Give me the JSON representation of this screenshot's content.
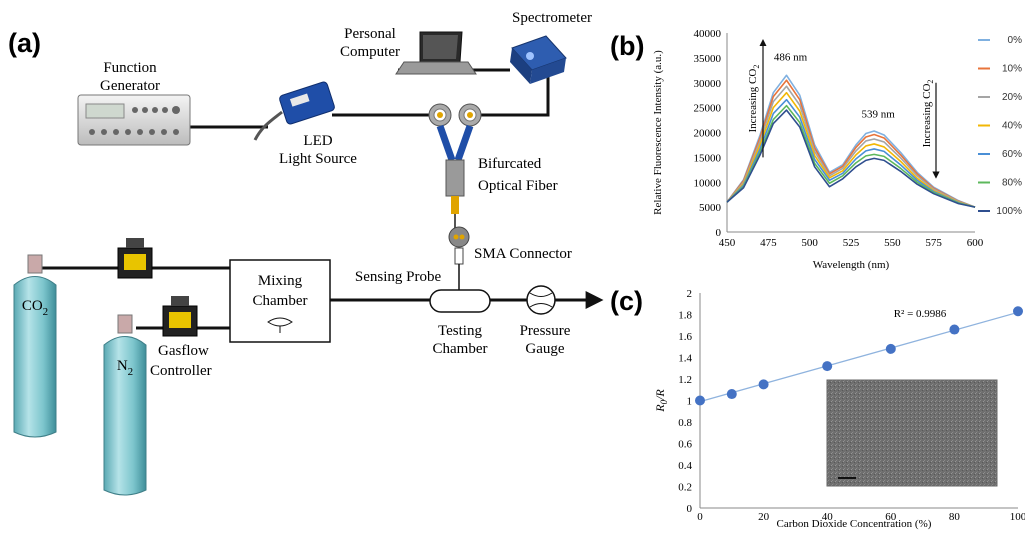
{
  "panels": {
    "a": "(a)",
    "b": "(b)",
    "c": "(c)"
  },
  "setup": {
    "function_generator": [
      "Function",
      "Generator"
    ],
    "personal_computer": [
      "Personal",
      "Computer"
    ],
    "spectrometer": "Spectrometer",
    "led": [
      "LED",
      "Light Source"
    ],
    "bifurcated_fiber": [
      "Bifurcated",
      "Optical Fiber"
    ],
    "sma_connector": "SMA Connector",
    "sensing_probe": "Sensing Probe",
    "mixing_chamber": [
      "Mixing",
      "Chamber"
    ],
    "testing_chamber": [
      "Testing",
      "Chamber"
    ],
    "pressure_gauge": [
      "Pressure",
      "Gauge"
    ],
    "gasflow_controller": [
      "Gasflow",
      "Controller"
    ],
    "co2_cylinder": "CO2",
    "n2_cylinder": "N2"
  },
  "chart_data": [
    {
      "type": "line",
      "xlabel": "Wavelength  (nm)",
      "ylabel": "Relative Fluorescence Intensity (a.u.)",
      "xlim": [
        450,
        600
      ],
      "ylim": [
        0,
        40000
      ],
      "xticks": [
        450,
        475,
        500,
        525,
        550,
        575,
        600
      ],
      "yticks": [
        0,
        5000,
        10000,
        15000,
        20000,
        25000,
        30000,
        35000,
        40000
      ],
      "annotations": [
        "486 nm",
        "539 nm",
        "Increasing CO2",
        "Increasing CO2"
      ],
      "x": [
        450,
        460,
        470,
        478,
        486,
        494,
        503,
        512,
        520,
        528,
        534,
        539,
        545,
        555,
        565,
        575,
        590,
        600
      ],
      "series": [
        {
          "name": "0%",
          "color": "#7fb0e0",
          "values": [
            6000,
            10500,
            19500,
            28000,
            31500,
            27500,
            17500,
            12000,
            13500,
            17500,
            19800,
            20300,
            19500,
            16000,
            12000,
            9000,
            6300,
            5000
          ]
        },
        {
          "name": "10%",
          "color": "#e8743b",
          "values": [
            6000,
            10300,
            19000,
            27200,
            30500,
            26600,
            16900,
            11700,
            13200,
            17000,
            19100,
            19600,
            18900,
            15500,
            11700,
            8800,
            6200,
            5000
          ]
        },
        {
          "name": "20%",
          "color": "#a5a5a5",
          "values": [
            6000,
            10000,
            18300,
            26200,
            29300,
            25500,
            16200,
            11300,
            12800,
            16300,
            18300,
            18700,
            18100,
            14900,
            11300,
            8600,
            6100,
            5000
          ]
        },
        {
          "name": "40%",
          "color": "#f2b705",
          "values": [
            6000,
            9700,
            17500,
            25000,
            28000,
            24300,
            15400,
            10900,
            12300,
            15500,
            17300,
            17700,
            17100,
            14200,
            10800,
            8300,
            6000,
            5000
          ]
        },
        {
          "name": "60%",
          "color": "#4a8fd6",
          "values": [
            6000,
            9400,
            16700,
            23800,
            26600,
            23100,
            14600,
            10400,
            11800,
            14700,
            16300,
            16700,
            16200,
            13500,
            10400,
            8100,
            5900,
            5000
          ]
        },
        {
          "name": "80%",
          "color": "#5db85c",
          "values": [
            6000,
            9100,
            16000,
            22600,
            25400,
            22000,
            13800,
            9800,
            11300,
            13900,
            15300,
            15600,
            15200,
            12800,
            10000,
            7900,
            5800,
            5000
          ]
        },
        {
          "name": "100%",
          "color": "#2f4f8f",
          "values": [
            6000,
            8900,
            15500,
            21800,
            24500,
            21100,
            13100,
            9100,
            10700,
            13100,
            14400,
            14800,
            14400,
            12200,
            9600,
            7700,
            5700,
            5000
          ]
        }
      ]
    },
    {
      "type": "scatter",
      "xlabel": "Carbon Dioxide Concentration (%)",
      "ylabel": "R0/R",
      "xlim": [
        0,
        100
      ],
      "ylim": [
        0,
        2
      ],
      "xticks": [
        0,
        20,
        40,
        60,
        80,
        100
      ],
      "yticks": [
        0,
        0.2,
        0.4,
        0.6,
        0.8,
        1,
        1.2,
        1.4,
        1.6,
        1.8,
        2
      ],
      "annotation": "R² = 0.9986",
      "trendline": [
        [
          0,
          0.99
        ],
        [
          100,
          1.82
        ]
      ],
      "x": [
        0,
        10,
        20,
        40,
        60,
        80,
        100
      ],
      "values": [
        1.0,
        1.06,
        1.15,
        1.32,
        1.48,
        1.66,
        1.83
      ]
    }
  ]
}
